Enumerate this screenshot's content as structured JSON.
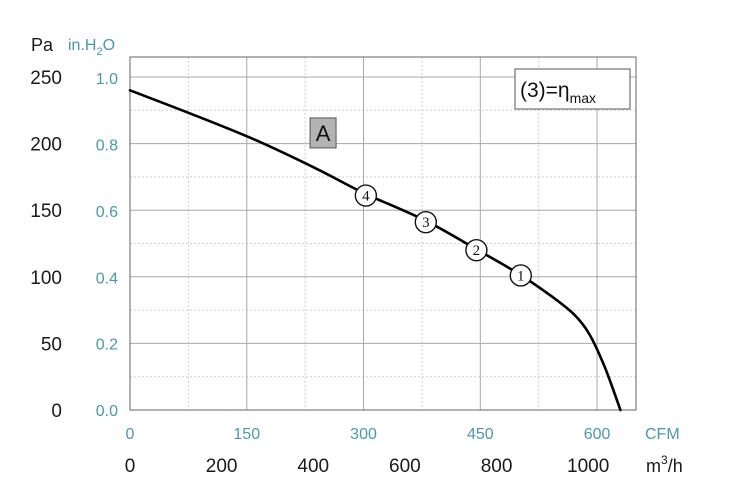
{
  "chart_data": {
    "type": "line",
    "units": {
      "pressure_pa": "Pa",
      "pressure_inh2o_prefix": "in.H",
      "pressure_inh2o_sub": "2",
      "pressure_inh2o_suffix": "O",
      "flow_cfm": "CFM",
      "flow_m3h_prefix": "m",
      "flow_m3h_sup": "3",
      "flow_m3h_suffix": "/h"
    },
    "x_m3h_ticks": [
      "0",
      "200",
      "400",
      "600",
      "800",
      "1000"
    ],
    "x_m3h_values": [
      0,
      200,
      400,
      600,
      800,
      1000
    ],
    "x_cfm_ticks": [
      "0",
      "150",
      "300",
      "450",
      "600"
    ],
    "x_cfm_values": [
      0,
      150,
      300,
      450,
      600
    ],
    "y_pa_ticks": [
      "0",
      "50",
      "100",
      "150",
      "200",
      "250"
    ],
    "y_pa_values": [
      0,
      50,
      100,
      150,
      200,
      250
    ],
    "y_inh2o_ticks": [
      "0.0",
      "0.2",
      "0.4",
      "0.6",
      "0.8",
      "1.0"
    ],
    "y_inh2o_values": [
      0.0,
      0.2,
      0.4,
      0.6,
      0.8,
      1.0
    ],
    "xlim_cfm": [
      0,
      650
    ],
    "ylim_pa": [
      0,
      265
    ],
    "grid": true,
    "series": [
      {
        "name": "A",
        "x_cfm": [
          0,
          80,
          160,
          240,
          300,
          380,
          450,
          500,
          540,
          570,
          590,
          610,
          630
        ],
        "y_pa": [
          240,
          222,
          203,
          181,
          163,
          142,
          119,
          102,
          86,
          72,
          57,
          32,
          0
        ]
      }
    ],
    "operating_points": [
      {
        "label": "4",
        "x_cfm": 303,
        "y_pa": 161
      },
      {
        "label": "3",
        "x_cfm": 380,
        "y_pa": 141
      },
      {
        "label": "2",
        "x_cfm": 445,
        "y_pa": 120
      },
      {
        "label": "1",
        "x_cfm": 502,
        "y_pa": 101
      }
    ],
    "region_label": {
      "text": "A",
      "x_cfm": 248,
      "y_pa": 208
    },
    "legend": {
      "main": "(3)=η",
      "sub": "max",
      "placement": "top-right"
    }
  }
}
